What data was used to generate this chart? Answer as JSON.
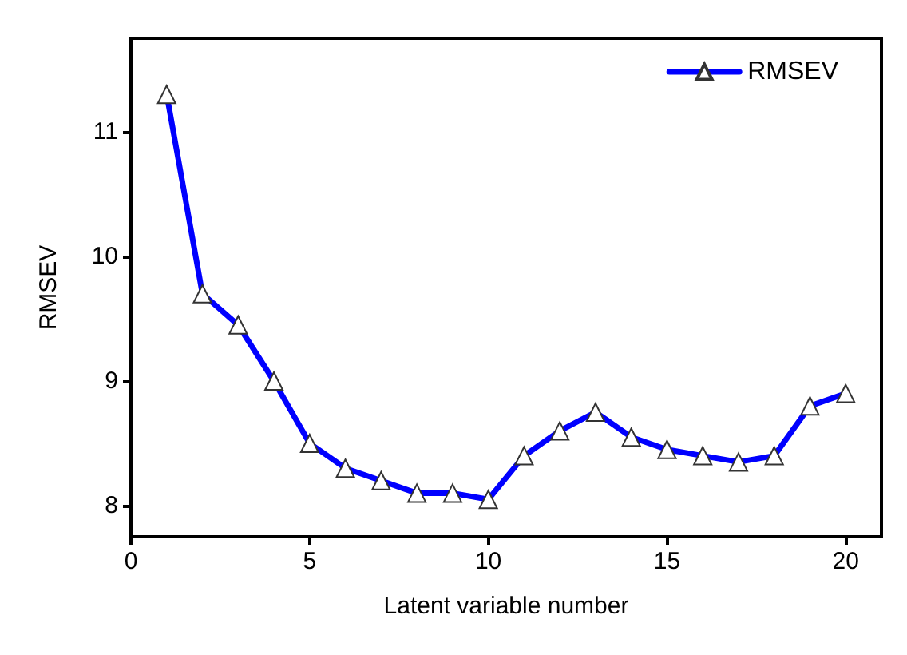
{
  "chart_data": {
    "type": "line",
    "xlabel": "Latent variable number",
    "ylabel": "RMSEV",
    "x": [
      1,
      2,
      3,
      4,
      5,
      6,
      7,
      8,
      9,
      10,
      11,
      12,
      13,
      14,
      15,
      16,
      17,
      18,
      19,
      20
    ],
    "series": [
      {
        "name": "RMSEV",
        "color": "#0000ff",
        "values": [
          11.3,
          9.7,
          9.45,
          9.0,
          8.5,
          8.3,
          8.2,
          8.1,
          8.1,
          8.05,
          8.4,
          8.6,
          8.75,
          8.55,
          8.45,
          8.4,
          8.35,
          8.4,
          8.8,
          8.9
        ]
      }
    ],
    "xlim": [
      0,
      21
    ],
    "xticks": [
      0,
      5,
      10,
      15,
      20
    ],
    "ylim": [
      7.75,
      11.75
    ],
    "yticks": [
      8,
      9,
      10,
      11
    ],
    "marker": "triangle",
    "line_style": "solid",
    "legend": "top right",
    "grid": false
  }
}
